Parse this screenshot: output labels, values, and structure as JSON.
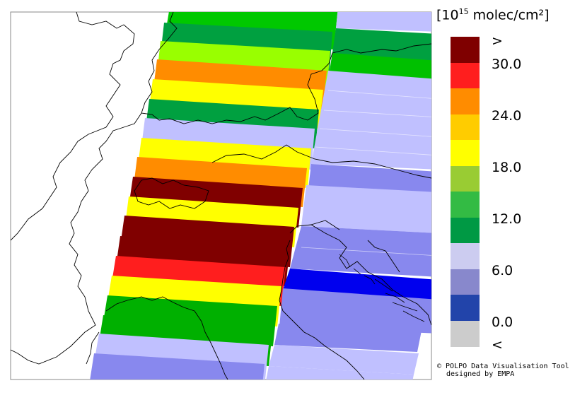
{
  "legend": {
    "title_prefix": "[10",
    "title_exp": "15",
    "title_suffix": " molec/cm²]",
    "colors": [
      "#7f0000",
      "#ff1e1e",
      "#ff8c00",
      "#ffcc00",
      "#ffff00",
      "#99cc33",
      "#33bb44",
      "#009944",
      "#ccccf0",
      "#8888cc",
      "#2244aa",
      "#cccccc"
    ],
    "labels": [
      ">",
      "30.0",
      "24.0",
      "18.0",
      "12.0",
      "6.0",
      "0.0",
      "<"
    ]
  },
  "credit": {
    "line1": "© POLPO Data Visualisation Tool",
    "line2": "designed by EMPA"
  },
  "map_colors": {
    "border": "#000000",
    "coast": "#000000"
  }
}
